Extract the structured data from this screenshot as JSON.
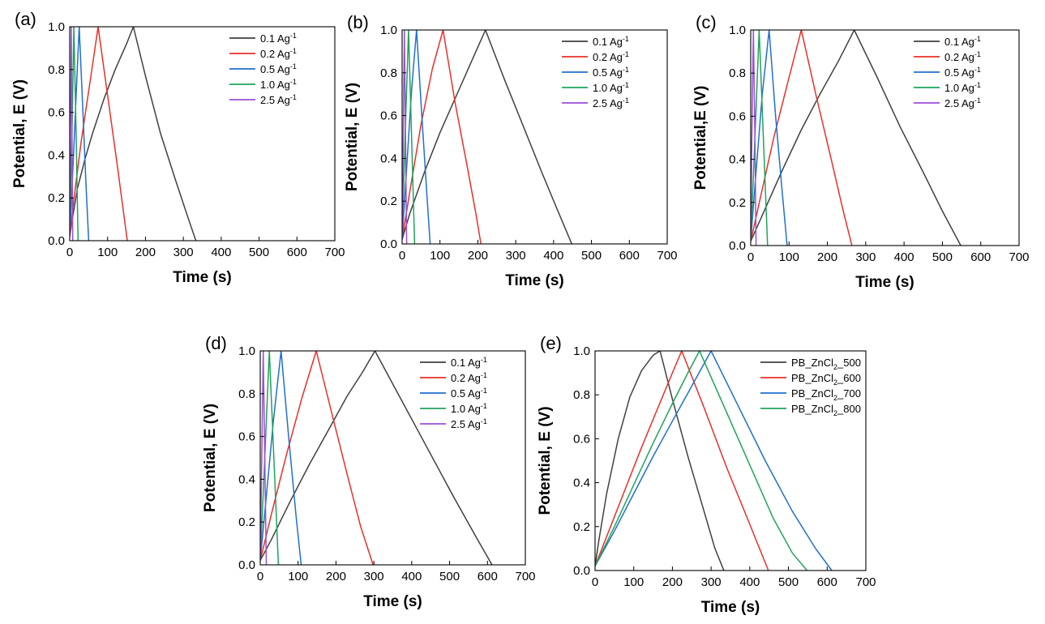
{
  "chart_data": [
    {
      "panel_label": "(a)",
      "type": "line",
      "xlabel": "Time (s)",
      "ylabel": "Potential, E (V)",
      "xlim": [
        0,
        700
      ],
      "ylim": [
        0,
        1.0
      ],
      "xticks": [
        0,
        100,
        200,
        300,
        400,
        500,
        600,
        700
      ],
      "yticks": [
        0.0,
        0.2,
        0.4,
        0.6,
        0.8,
        1.0
      ],
      "legend_position": "top-right",
      "series": [
        {
          "name": "0.1 Ag",
          "name_sup": "-1",
          "color": "#404040",
          "points": [
            [
              0,
              0.02
            ],
            [
              5,
              0.08
            ],
            [
              20,
              0.24
            ],
            [
              40,
              0.38
            ],
            [
              60,
              0.5
            ],
            [
              90,
              0.66
            ],
            [
              120,
              0.8
            ],
            [
              150,
              0.92
            ],
            [
              168,
              1.0
            ],
            [
              200,
              0.77
            ],
            [
              240,
              0.5
            ],
            [
              280,
              0.28
            ],
            [
              310,
              0.12
            ],
            [
              333,
              0.0
            ]
          ]
        },
        {
          "name": "0.2 Ag",
          "name_sup": "-1",
          "color": "#e8302a",
          "points": [
            [
              0,
              0.02
            ],
            [
              10,
              0.18
            ],
            [
              30,
              0.46
            ],
            [
              50,
              0.7
            ],
            [
              65,
              0.88
            ],
            [
              75,
              1.0
            ],
            [
              100,
              0.68
            ],
            [
              125,
              0.36
            ],
            [
              140,
              0.16
            ],
            [
              152,
              0.0
            ]
          ]
        },
        {
          "name": "0.5 Ag",
          "name_sup": "-1",
          "color": "#1f6fd1",
          "points": [
            [
              0,
              0.02
            ],
            [
              10,
              0.4
            ],
            [
              20,
              0.8
            ],
            [
              25,
              1.0
            ],
            [
              35,
              0.6
            ],
            [
              43,
              0.26
            ],
            [
              50,
              0.0
            ]
          ]
        },
        {
          "name": "1.0 Ag",
          "name_sup": "-1",
          "color": "#1fa45c",
          "points": [
            [
              0,
              0.02
            ],
            [
              6,
              0.5
            ],
            [
              11,
              1.0
            ],
            [
              17,
              0.5
            ],
            [
              22,
              0.0
            ]
          ]
        },
        {
          "name": "2.5 Ag",
          "name_sup": "-1",
          "color": "#9b4fd4",
          "points": [
            [
              0,
              0.02
            ],
            [
              2,
              0.5
            ],
            [
              4,
              1.0
            ],
            [
              6,
              0.5
            ],
            [
              8,
              0.0
            ]
          ]
        }
      ]
    },
    {
      "panel_label": "(b)",
      "type": "line",
      "xlabel": "Time (s)",
      "ylabel": "Potential, E (V)",
      "xlim": [
        0,
        700
      ],
      "ylim": [
        0,
        1.0
      ],
      "xticks": [
        0,
        100,
        200,
        300,
        400,
        500,
        600,
        700
      ],
      "yticks": [
        0.0,
        0.2,
        0.4,
        0.6,
        0.8,
        1.0
      ],
      "legend_position": "top-right",
      "series": [
        {
          "name": "0.1 Ag",
          "name_sup": "-1",
          "color": "#404040",
          "points": [
            [
              0,
              0.02
            ],
            [
              20,
              0.14
            ],
            [
              60,
              0.34
            ],
            [
              100,
              0.52
            ],
            [
              140,
              0.68
            ],
            [
              180,
              0.84
            ],
            [
              220,
              1.0
            ],
            [
              270,
              0.77
            ],
            [
              320,
              0.55
            ],
            [
              370,
              0.33
            ],
            [
              410,
              0.16
            ],
            [
              448,
              0.0
            ]
          ]
        },
        {
          "name": "0.2 Ag",
          "name_sup": "-1",
          "color": "#e8302a",
          "points": [
            [
              0,
              0.02
            ],
            [
              20,
              0.24
            ],
            [
              50,
              0.56
            ],
            [
              80,
              0.82
            ],
            [
              108,
              1.0
            ],
            [
              140,
              0.66
            ],
            [
              170,
              0.38
            ],
            [
              195,
              0.14
            ],
            [
              208,
              0.0
            ]
          ]
        },
        {
          "name": "0.5 Ag",
          "name_sup": "-1",
          "color": "#1f6fd1",
          "points": [
            [
              0,
              0.02
            ],
            [
              10,
              0.3
            ],
            [
              25,
              0.72
            ],
            [
              38,
              1.0
            ],
            [
              52,
              0.6
            ],
            [
              65,
              0.24
            ],
            [
              74,
              0.0
            ]
          ]
        },
        {
          "name": "1.0 Ag",
          "name_sup": "-1",
          "color": "#1fa45c",
          "points": [
            [
              0,
              0.02
            ],
            [
              8,
              0.5
            ],
            [
              17,
              1.0
            ],
            [
              25,
              0.5
            ],
            [
              33,
              0.0
            ]
          ]
        },
        {
          "name": "2.5 Ag",
          "name_sup": "-1",
          "color": "#9b4fd4",
          "points": [
            [
              0,
              0.02
            ],
            [
              3,
              0.5
            ],
            [
              6,
              1.0
            ],
            [
              9,
              0.5
            ],
            [
              12,
              0.0
            ]
          ]
        }
      ]
    },
    {
      "panel_label": "(c)",
      "type": "line",
      "xlabel": "Time (s)",
      "ylabel": "Potential,E (V)",
      "xlim": [
        0,
        700
      ],
      "ylim": [
        0,
        1.0
      ],
      "xticks": [
        0,
        100,
        200,
        300,
        400,
        500,
        600,
        700
      ],
      "yticks": [
        0.0,
        0.2,
        0.4,
        0.6,
        0.8,
        1.0
      ],
      "legend_position": "top-right",
      "series": [
        {
          "name": "0.1 Ag",
          "name_sup": "-1",
          "color": "#404040",
          "points": [
            [
              0,
              0.02
            ],
            [
              30,
              0.14
            ],
            [
              80,
              0.34
            ],
            [
              130,
              0.53
            ],
            [
              180,
              0.7
            ],
            [
              230,
              0.86
            ],
            [
              270,
              1.0
            ],
            [
              330,
              0.78
            ],
            [
              390,
              0.55
            ],
            [
              450,
              0.34
            ],
            [
              500,
              0.16
            ],
            [
              548,
              0.0
            ]
          ]
        },
        {
          "name": "0.2 Ag",
          "name_sup": "-1",
          "color": "#e8302a",
          "points": [
            [
              0,
              0.02
            ],
            [
              25,
              0.22
            ],
            [
              60,
              0.5
            ],
            [
              100,
              0.78
            ],
            [
              132,
              1.0
            ],
            [
              170,
              0.7
            ],
            [
              210,
              0.4
            ],
            [
              240,
              0.17
            ],
            [
              264,
              0.0
            ]
          ]
        },
        {
          "name": "0.5 Ag",
          "name_sup": "-1",
          "color": "#1f6fd1",
          "points": [
            [
              0,
              0.02
            ],
            [
              12,
              0.3
            ],
            [
              30,
              0.7
            ],
            [
              48,
              1.0
            ],
            [
              65,
              0.6
            ],
            [
              82,
              0.25
            ],
            [
              95,
              0.0
            ]
          ]
        },
        {
          "name": "1.0 Ag",
          "name_sup": "-1",
          "color": "#1fa45c",
          "points": [
            [
              0,
              0.02
            ],
            [
              11,
              0.5
            ],
            [
              22,
              1.0
            ],
            [
              33,
              0.5
            ],
            [
              44,
              0.0
            ]
          ]
        },
        {
          "name": "2.5 Ag",
          "name_sup": "-1",
          "color": "#9b4fd4",
          "points": [
            [
              0,
              0.02
            ],
            [
              3,
              0.5
            ],
            [
              7,
              1.0
            ],
            [
              11,
              0.5
            ],
            [
              14,
              0.0
            ]
          ]
        }
      ]
    },
    {
      "panel_label": "(d)",
      "type": "line",
      "xlabel": "Time (s)",
      "ylabel": "Potential, E (V)",
      "xlim": [
        0,
        700
      ],
      "ylim": [
        0,
        1.0
      ],
      "xticks": [
        0,
        100,
        200,
        300,
        400,
        500,
        600,
        700
      ],
      "yticks": [
        0.0,
        0.2,
        0.4,
        0.6,
        0.8,
        1.0
      ],
      "legend_position": "top-right",
      "series": [
        {
          "name": "0.1 Ag",
          "name_sup": "-1",
          "color": "#404040",
          "points": [
            [
              0,
              0.02
            ],
            [
              30,
              0.12
            ],
            [
              80,
              0.3
            ],
            [
              130,
              0.47
            ],
            [
              180,
              0.63
            ],
            [
              230,
              0.79
            ],
            [
              270,
              0.9
            ],
            [
              303,
              1.0
            ],
            [
              370,
              0.78
            ],
            [
              440,
              0.55
            ],
            [
              510,
              0.32
            ],
            [
              570,
              0.13
            ],
            [
              612,
              0.0
            ]
          ]
        },
        {
          "name": "0.2 Ag",
          "name_sup": "-1",
          "color": "#e8302a",
          "points": [
            [
              0,
              0.02
            ],
            [
              30,
              0.24
            ],
            [
              70,
              0.52
            ],
            [
              110,
              0.78
            ],
            [
              148,
              1.0
            ],
            [
              190,
              0.7
            ],
            [
              230,
              0.42
            ],
            [
              265,
              0.18
            ],
            [
              298,
              0.0
            ]
          ]
        },
        {
          "name": "0.5 Ag",
          "name_sup": "-1",
          "color": "#1f6fd1",
          "points": [
            [
              0,
              0.02
            ],
            [
              15,
              0.3
            ],
            [
              35,
              0.68
            ],
            [
              55,
              1.0
            ],
            [
              75,
              0.6
            ],
            [
              95,
              0.22
            ],
            [
              108,
              0.0
            ]
          ]
        },
        {
          "name": "1.0 Ag",
          "name_sup": "-1",
          "color": "#1fa45c",
          "points": [
            [
              0,
              0.02
            ],
            [
              12,
              0.5
            ],
            [
              24,
              1.0
            ],
            [
              36,
              0.5
            ],
            [
              48,
              0.0
            ]
          ]
        },
        {
          "name": "2.5 Ag",
          "name_sup": "-1",
          "color": "#9b4fd4",
          "points": [
            [
              0,
              0.02
            ],
            [
              4,
              0.5
            ],
            [
              8,
              1.0
            ],
            [
              12,
              0.5
            ],
            [
              16,
              0.0
            ]
          ]
        }
      ]
    },
    {
      "panel_label": "(e)",
      "type": "line",
      "xlabel": "Time (s)",
      "ylabel": "Potential, E (V)",
      "xlim": [
        0,
        700
      ],
      "ylim": [
        0,
        1.0
      ],
      "xticks": [
        0,
        100,
        200,
        300,
        400,
        500,
        600,
        700
      ],
      "yticks": [
        0.0,
        0.2,
        0.4,
        0.6,
        0.8,
        1.0
      ],
      "legend_position": "top-right",
      "series": [
        {
          "name": "PB_ZnCl",
          "name_sub": "2",
          "name_suffix": "_500",
          "color": "#404040",
          "points": [
            [
              0,
              0.02
            ],
            [
              10,
              0.14
            ],
            [
              30,
              0.35
            ],
            [
              60,
              0.6
            ],
            [
              90,
              0.79
            ],
            [
              120,
              0.91
            ],
            [
              150,
              0.98
            ],
            [
              168,
              1.0
            ],
            [
              200,
              0.78
            ],
            [
              240,
              0.52
            ],
            [
              280,
              0.28
            ],
            [
              310,
              0.1
            ],
            [
              333,
              0.0
            ]
          ]
        },
        {
          "name": "PB_ZnCl",
          "name_sub": "2",
          "name_suffix": "_600",
          "color": "#e8302a",
          "points": [
            [
              0,
              0.02
            ],
            [
              40,
              0.2
            ],
            [
              80,
              0.38
            ],
            [
              120,
              0.56
            ],
            [
              160,
              0.73
            ],
            [
              200,
              0.9
            ],
            [
              224,
              1.0
            ],
            [
              280,
              0.75
            ],
            [
              340,
              0.47
            ],
            [
              400,
              0.21
            ],
            [
              448,
              0.0
            ]
          ]
        },
        {
          "name": "PB_ZnCl",
          "name_sub": "2",
          "name_suffix": "_700",
          "color": "#1f6fd1",
          "points": [
            [
              0,
              0.02
            ],
            [
              50,
              0.18
            ],
            [
              100,
              0.35
            ],
            [
              150,
              0.52
            ],
            [
              200,
              0.68
            ],
            [
              250,
              0.84
            ],
            [
              300,
              1.0
            ],
            [
              370,
              0.75
            ],
            [
              440,
              0.5
            ],
            [
              510,
              0.27
            ],
            [
              570,
              0.1
            ],
            [
              612,
              0.0
            ]
          ]
        },
        {
          "name": "PB_ZnCl",
          "name_sub": "2",
          "name_suffix": "_800",
          "color": "#1fa45c",
          "points": [
            [
              0,
              0.02
            ],
            [
              50,
              0.2
            ],
            [
              100,
              0.39
            ],
            [
              150,
              0.58
            ],
            [
              200,
              0.76
            ],
            [
              240,
              0.9
            ],
            [
              270,
              1.0
            ],
            [
              330,
              0.76
            ],
            [
              400,
              0.48
            ],
            [
              460,
              0.24
            ],
            [
              510,
              0.08
            ],
            [
              548,
              0.0
            ]
          ]
        }
      ]
    }
  ]
}
